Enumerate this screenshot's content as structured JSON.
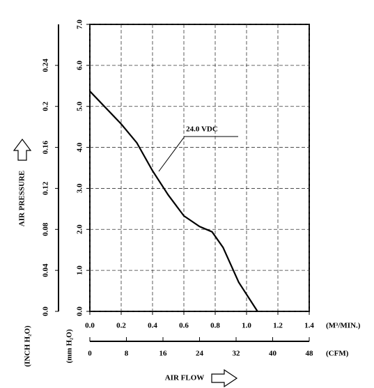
{
  "chart_data": {
    "type": "line",
    "annotation": "24.0 VDC",
    "y_label": "AIR PRESSURE",
    "y_unit": "(mm H₂O)",
    "y2_unit": "(INCH H₂O)",
    "x_label": "AIR FLOW",
    "x_unit": "(M³/MIN.)",
    "x2_unit": "(CFM)",
    "x": [
      0.0,
      0.2,
      0.3,
      0.4,
      0.5,
      0.6,
      0.7,
      0.78,
      0.85,
      0.95,
      1.07
    ],
    "series": [
      {
        "name": "24.0 VDC",
        "color": "#000000",
        "values": [
          5.37,
          4.57,
          4.11,
          3.43,
          2.84,
          2.33,
          2.07,
          1.94,
          1.56,
          0.71,
          0.0
        ]
      }
    ],
    "xlim": [
      0,
      1.4
    ],
    "xticks": [
      {
        "value": 0,
        "label": "0.0"
      },
      0.2,
      0.4,
      0.6,
      0.8,
      {
        "value": 1,
        "label": "1.0"
      },
      1.2,
      1.4
    ],
    "ylim": [
      0,
      7
    ],
    "yticks": [
      {
        "value": 0,
        "label": "0.0"
      },
      {
        "value": 1,
        "label": "1.0"
      },
      {
        "value": 2,
        "label": "2.0"
      },
      {
        "value": 3,
        "label": "3.0"
      },
      {
        "value": 4,
        "label": "4.0"
      },
      {
        "value": 5,
        "label": "5.0"
      },
      {
        "value": 6,
        "label": "6.0"
      },
      {
        "value": 7,
        "label": "7.0"
      }
    ],
    "y2lim": [
      0,
      0.28
    ],
    "y2ticks": [
      {
        "value": 0,
        "label": "0.0"
      },
      0.04,
      0.08,
      0.12,
      0.16,
      0.2,
      0.24
    ],
    "x2lim": [
      0,
      48
    ],
    "x2ticks": [
      0,
      8,
      16,
      24,
      32,
      40,
      48
    ],
    "grid": true
  }
}
